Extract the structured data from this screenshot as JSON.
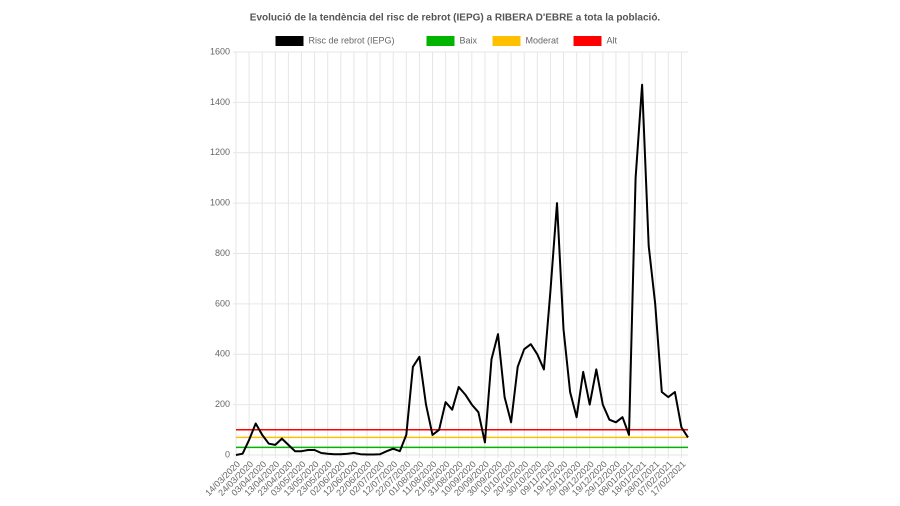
{
  "chart_data": {
    "type": "line",
    "title": "Evolució de la tendència del risc de rebrot (IEPG) a RIBERA D'EBRE a tota la població.",
    "categories": [
      "14/03/2020",
      null,
      "24/03/2020",
      null,
      "03/04/2020",
      null,
      "13/04/2020",
      null,
      "23/04/2020",
      null,
      "03/05/2020",
      null,
      "13/05/2020",
      null,
      "23/05/2020",
      null,
      "02/06/2020",
      null,
      "12/06/2020",
      null,
      "22/06/2020",
      null,
      "02/07/2020",
      null,
      "12/07/2020",
      null,
      "22/07/2020",
      null,
      "01/08/2020",
      null,
      "11/08/2020",
      null,
      "21/08/2020",
      null,
      "31/08/2020",
      null,
      "10/09/2020",
      null,
      "20/09/2020",
      null,
      "30/09/2020",
      null,
      "10/10/2020",
      null,
      "20/10/2020",
      null,
      "30/10/2020",
      null,
      "09/11/2020",
      null,
      "19/11/2020",
      null,
      "29/11/2020",
      null,
      "09/12/2020",
      null,
      "19/12/2020",
      null,
      "29/12/2020",
      null,
      "08/01/2021",
      null,
      "18/01/2021",
      null,
      "28/01/2021",
      null,
      "07/02/2021",
      null,
      "17/02/2021",
      null
    ],
    "series": [
      {
        "name": "Risc de rebrot (IEPG)",
        "color": "#000000",
        "values": [
          0,
          5,
          60,
          125,
          80,
          45,
          40,
          65,
          40,
          15,
          15,
          20,
          20,
          8,
          5,
          3,
          3,
          5,
          8,
          3,
          2,
          2,
          3,
          15,
          25,
          15,
          80,
          350,
          390,
          200,
          80,
          100,
          210,
          180,
          270,
          240,
          200,
          170,
          50,
          380,
          480,
          230,
          130,
          350,
          420,
          440,
          400,
          340,
          650,
          1000,
          500,
          250,
          150,
          330,
          200,
          340,
          200,
          140,
          130,
          150,
          80,
          1100,
          1470,
          830,
          600,
          250,
          230,
          250,
          110,
          70
        ]
      },
      {
        "name": "Baix",
        "color": "#00b400",
        "values": [
          30,
          30,
          30,
          30,
          30,
          30,
          30,
          30,
          30,
          30,
          30,
          30,
          30,
          30,
          30,
          30,
          30,
          30,
          30,
          30,
          30,
          30,
          30,
          30,
          30,
          30,
          30,
          30,
          30,
          30,
          30,
          30,
          30,
          30,
          30,
          30,
          30,
          30,
          30,
          30,
          30,
          30,
          30,
          30,
          30,
          30,
          30,
          30,
          30,
          30,
          30,
          30,
          30,
          30,
          30,
          30,
          30,
          30,
          30,
          30,
          30,
          30,
          30,
          30,
          30,
          30,
          30,
          30,
          30,
          30
        ]
      },
      {
        "name": "Moderat",
        "color": "#ffc000",
        "values": [
          70,
          70,
          70,
          70,
          70,
          70,
          70,
          70,
          70,
          70,
          70,
          70,
          70,
          70,
          70,
          70,
          70,
          70,
          70,
          70,
          70,
          70,
          70,
          70,
          70,
          70,
          70,
          70,
          70,
          70,
          70,
          70,
          70,
          70,
          70,
          70,
          70,
          70,
          70,
          70,
          70,
          70,
          70,
          70,
          70,
          70,
          70,
          70,
          70,
          70,
          70,
          70,
          70,
          70,
          70,
          70,
          70,
          70,
          70,
          70,
          70,
          70,
          70,
          70,
          70,
          70,
          70,
          70,
          70,
          70
        ]
      },
      {
        "name": "Alt",
        "color": "#ff0000",
        "values": [
          100,
          100,
          100,
          100,
          100,
          100,
          100,
          100,
          100,
          100,
          100,
          100,
          100,
          100,
          100,
          100,
          100,
          100,
          100,
          100,
          100,
          100,
          100,
          100,
          100,
          100,
          100,
          100,
          100,
          100,
          100,
          100,
          100,
          100,
          100,
          100,
          100,
          100,
          100,
          100,
          100,
          100,
          100,
          100,
          100,
          100,
          100,
          100,
          100,
          100,
          100,
          100,
          100,
          100,
          100,
          100,
          100,
          100,
          100,
          100,
          100,
          100,
          100,
          100,
          100,
          100,
          100,
          100,
          100,
          100
        ]
      }
    ],
    "ylim": [
      0,
      1600
    ],
    "yticks": [
      0,
      200,
      400,
      600,
      800,
      1000,
      1200,
      1400,
      1600
    ],
    "grid": true,
    "legend": "top"
  }
}
